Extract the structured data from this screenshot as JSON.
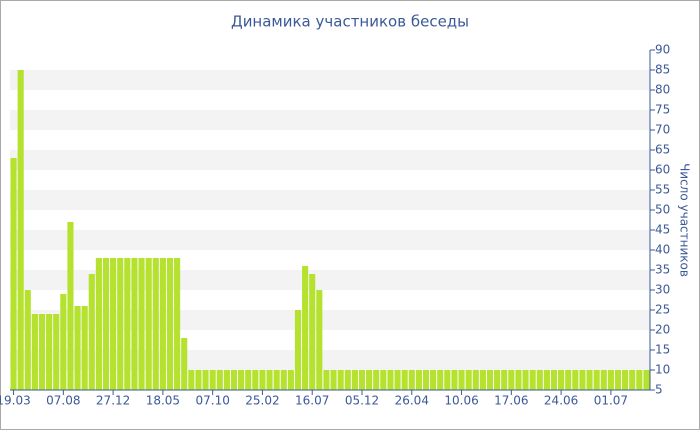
{
  "chart_data": {
    "type": "bar",
    "title": "Динамика участников беседы",
    "y_axis_label": "Число участников",
    "categories": [
      "19.03",
      null,
      null,
      null,
      null,
      null,
      null,
      "07.08",
      null,
      null,
      null,
      null,
      null,
      null,
      "27.12",
      null,
      null,
      null,
      null,
      null,
      null,
      "18.05",
      null,
      null,
      null,
      null,
      null,
      null,
      "07.10",
      null,
      null,
      null,
      null,
      null,
      null,
      "25.02",
      null,
      null,
      null,
      null,
      null,
      null,
      "16.07",
      null,
      null,
      null,
      null,
      null,
      null,
      "05.12",
      null,
      null,
      null,
      null,
      null,
      null,
      "26.04",
      null,
      null,
      null,
      null,
      null,
      null,
      "10.06",
      null,
      null,
      null,
      null,
      null,
      null,
      "17.06",
      null,
      null,
      null,
      null,
      null,
      null,
      "24.06",
      null,
      null,
      null,
      null,
      null,
      null,
      "01.07",
      null,
      null,
      null,
      null,
      null
    ],
    "values": [
      63,
      85,
      30,
      24,
      24,
      24,
      24,
      29,
      47,
      26,
      26,
      34,
      38,
      38,
      38,
      38,
      38,
      38,
      38,
      38,
      38,
      38,
      38,
      38,
      18,
      10,
      10,
      10,
      10,
      10,
      10,
      10,
      10,
      10,
      10,
      10,
      10,
      10,
      10,
      10,
      25,
      36,
      34,
      30,
      10,
      10,
      10,
      10,
      10,
      10,
      10,
      10,
      10,
      10,
      10,
      10,
      10,
      10,
      10,
      10,
      10,
      10,
      10,
      10,
      10,
      10,
      10,
      10,
      10,
      10,
      10,
      10,
      10,
      10,
      10,
      10,
      10,
      10,
      10,
      10,
      10,
      10,
      10,
      10,
      10,
      10,
      10,
      10,
      10,
      10
    ],
    "color": "#b5e22e",
    "ylim": [
      5,
      90
    ],
    "yticks": [
      5,
      10,
      15,
      20,
      25,
      30,
      35,
      40,
      45,
      50,
      55,
      60,
      65,
      70,
      75,
      80,
      85,
      90
    ],
    "grid": true
  }
}
